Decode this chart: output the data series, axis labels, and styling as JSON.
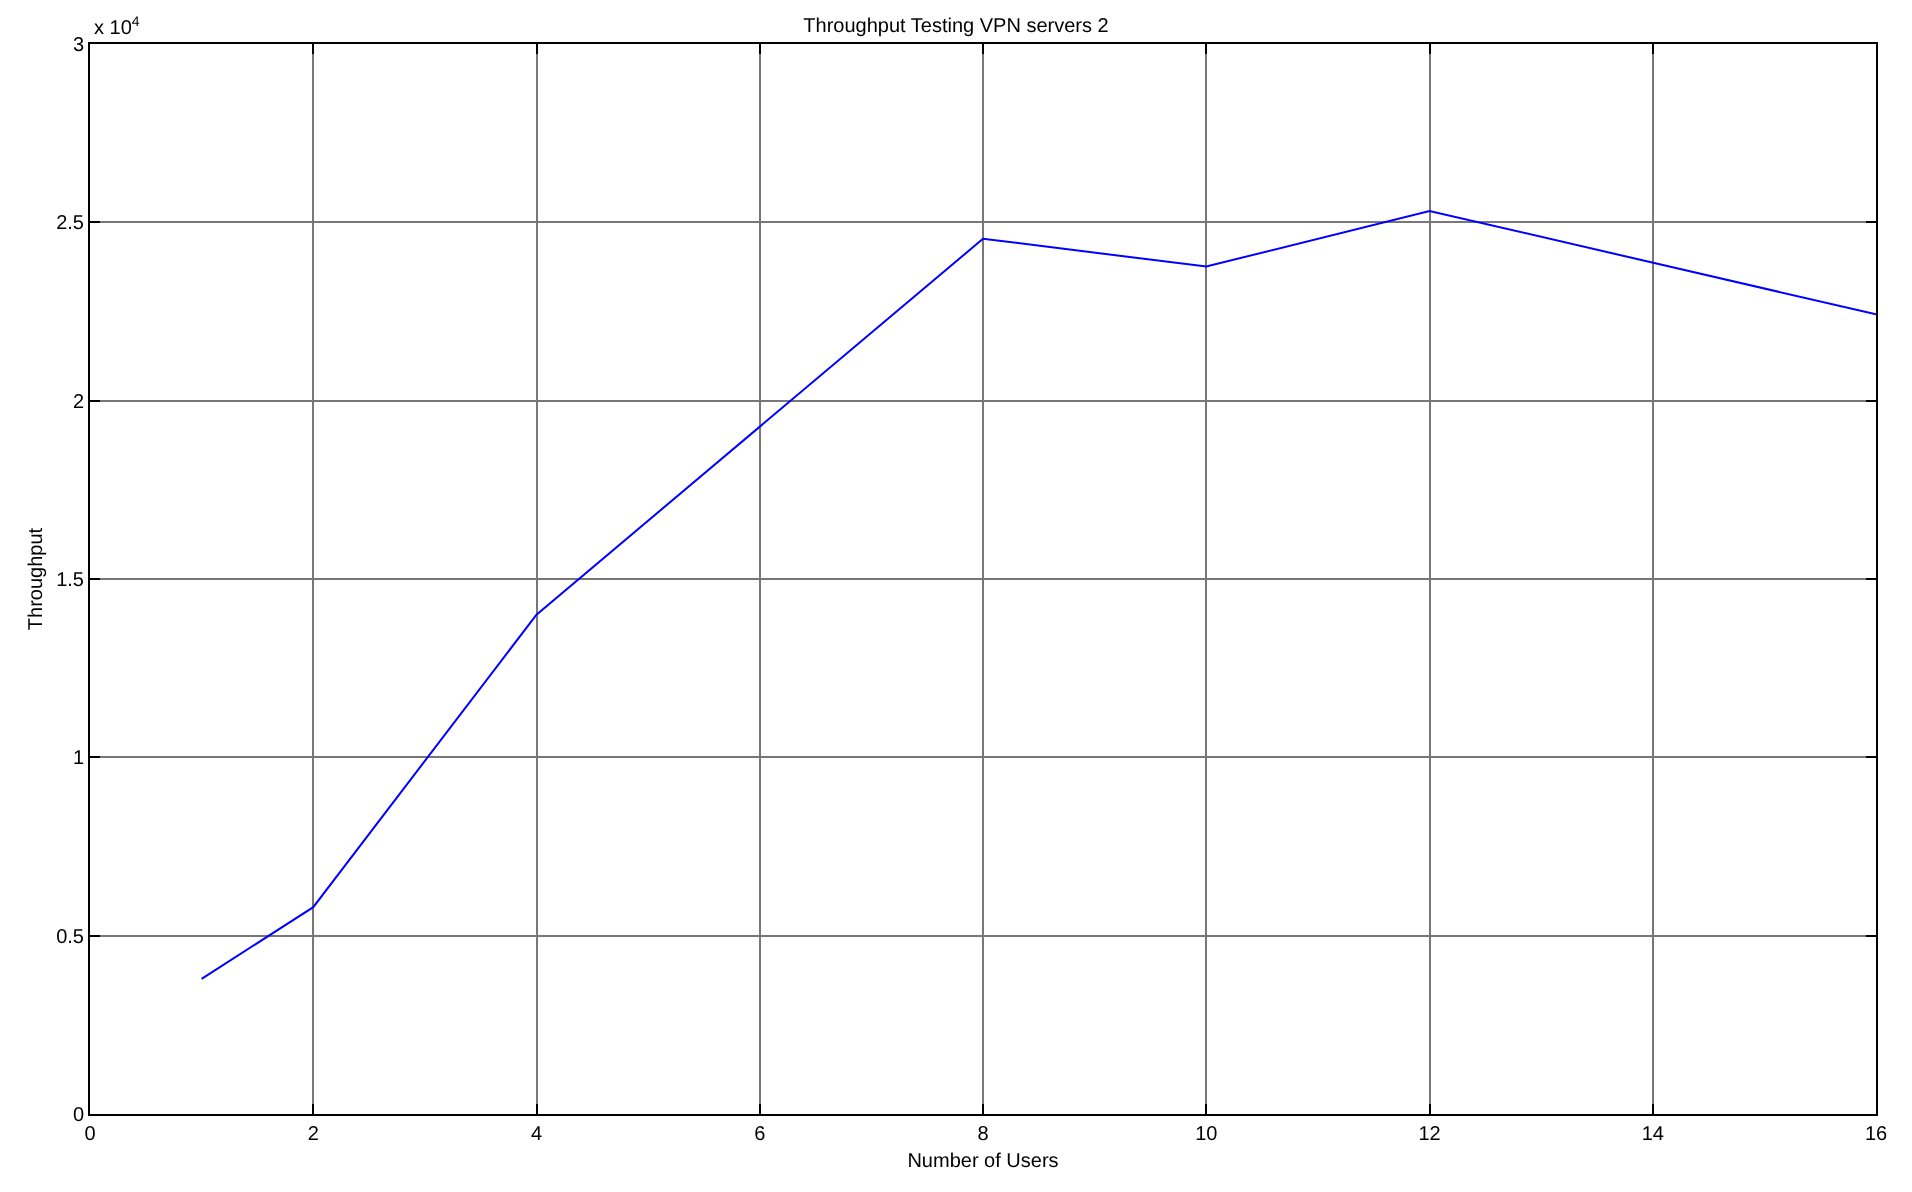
{
  "chart_data": {
    "type": "line",
    "title": "Throughput Testing VPN servers 2",
    "xlabel": "Number of Users",
    "ylabel": "Throughput",
    "x": [
      1,
      2,
      4,
      8,
      10,
      12,
      16
    ],
    "series": [
      {
        "color": "#0000ff",
        "values": [
          0.379,
          0.58,
          1.4,
          2.454,
          2.376,
          2.532,
          2.242
        ]
      }
    ],
    "xlim": [
      0,
      16
    ],
    "xticks": [
      0,
      2,
      4,
      6,
      8,
      10,
      12,
      14,
      16
    ],
    "ylim": [
      0,
      3
    ],
    "yticks": [
      0,
      0.5,
      1,
      1.5,
      2,
      2.5,
      3
    ],
    "annotations": [
      "x 10$^{4}$"
    ],
    "grid": true,
    "marker": "none",
    "line_style": "solid"
  }
}
